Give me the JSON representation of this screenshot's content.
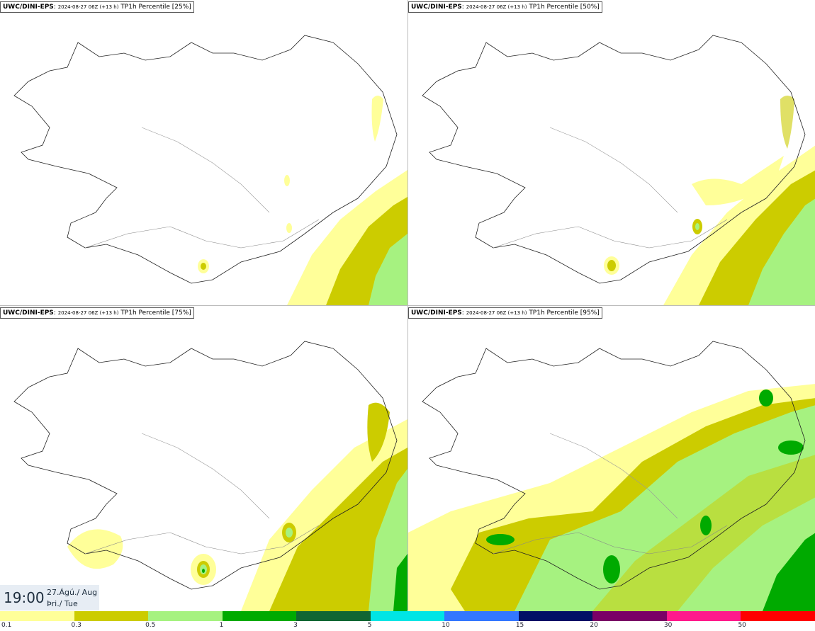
{
  "panels": [
    {
      "source": "UWC/DINI-EPS",
      "run": "2024-08-27 06Z (+13 h)",
      "field": "TP1h Percentile [25%]"
    },
    {
      "source": "UWC/DINI-EPS",
      "run": "2024-08-27 06Z (+13 h)",
      "field": "TP1h Percentile [50%]"
    },
    {
      "source": "UWC/DINI-EPS",
      "run": "2024-08-27 06Z (+13 h)",
      "field": "TP1h Percentile [75%]"
    },
    {
      "source": "UWC/DINI-EPS",
      "run": "2024-08-27 06Z (+13 h)",
      "field": "TP1h Percentile [95%]"
    }
  ],
  "time_box": {
    "time": "19:00",
    "date_line1": "27.Ágú./ Aug",
    "date_line2": "Þri./ Tue"
  },
  "legend": {
    "colors": [
      "#ffff99",
      "#cccc00",
      "#a6f280",
      "#00aa00",
      "#116633",
      "#00e5e5",
      "#3377ff",
      "#001166",
      "#7a0066",
      "#ff1a8c",
      "#ff0000"
    ],
    "labels": [
      "0.1",
      "0.3",
      "0.5",
      "1",
      "3",
      "5",
      "10",
      "15",
      "20",
      "30",
      "50"
    ]
  }
}
